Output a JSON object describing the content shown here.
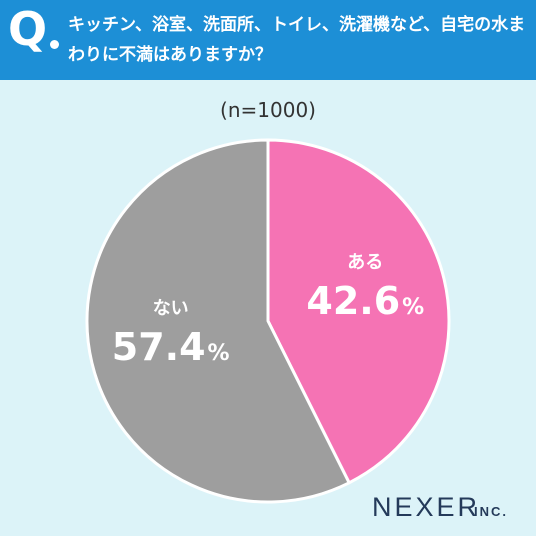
{
  "question": {
    "mark": "Q",
    "text": "キッチン、浴室、洗面所、トイレ、洗濯機など、自宅の水まわりに不満はありますか？"
  },
  "sample_note": "(n=1000)",
  "brand": {
    "name": "NEXER",
    "suffix": "INC."
  },
  "colors": {
    "header": "#1d8fd6",
    "background": "#dcf3f8",
    "aru": "#f573b4",
    "nai": "#9e9e9e"
  },
  "chart_data": {
    "type": "pie",
    "title": "キッチン、浴室、洗面所、トイレ、洗濯機など、自宅の水まわりに不満はありますか？",
    "subtitle": "(n=1000)",
    "labels": [
      "ある",
      "ない"
    ],
    "values": [
      42.6,
      57.4
    ],
    "unit": "%",
    "value_labels": [
      "42.6",
      "57.4"
    ],
    "colors": [
      "#f573b4",
      "#9e9e9e"
    ],
    "start": "12 o'clock",
    "direction": "clockwise",
    "legend": "none"
  }
}
